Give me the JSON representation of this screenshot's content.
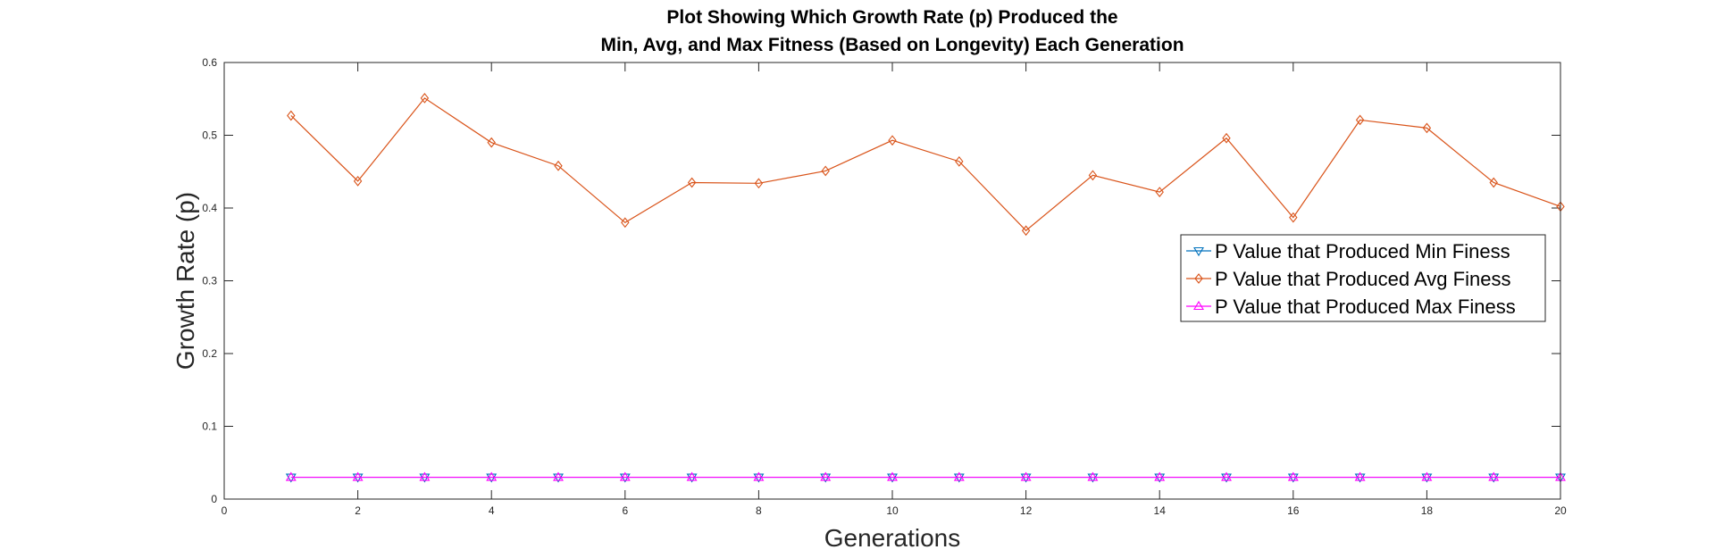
{
  "chart_data": {
    "type": "line",
    "title": [
      "Plot Showing Which Growth Rate (p) Produced the",
      "Min, Avg, and Max Fitness (Based on Longevity) Each Generation"
    ],
    "xlabel": "Generations",
    "ylabel": "Growth Rate (p)",
    "xlim": [
      0,
      20
    ],
    "ylim": [
      0,
      0.6
    ],
    "xticks": [
      0,
      2,
      4,
      6,
      8,
      10,
      12,
      14,
      16,
      18,
      20
    ],
    "yticks": [
      0,
      0.1,
      0.2,
      0.3,
      0.4,
      0.5,
      0.6
    ],
    "grid": false,
    "legend_position": "right-center",
    "x": [
      1,
      2,
      3,
      4,
      5,
      6,
      7,
      8,
      9,
      10,
      11,
      12,
      13,
      14,
      15,
      16,
      17,
      18,
      19,
      20
    ],
    "series": [
      {
        "name": "P Value that Produced Min Finess",
        "color": "#0072BD",
        "marker": "triangle-down",
        "values": [
          0.03,
          0.03,
          0.03,
          0.03,
          0.03,
          0.03,
          0.03,
          0.03,
          0.03,
          0.03,
          0.03,
          0.03,
          0.03,
          0.03,
          0.03,
          0.03,
          0.03,
          0.03,
          0.03,
          0.03
        ]
      },
      {
        "name": "P Value that Produced Avg Finess",
        "color": "#D95319",
        "marker": "diamond",
        "values": [
          0.527,
          0.437,
          0.551,
          0.49,
          0.458,
          0.38,
          0.435,
          0.434,
          0.451,
          0.493,
          0.464,
          0.369,
          0.445,
          0.422,
          0.496,
          0.387,
          0.521,
          0.51,
          0.435,
          0.402
        ]
      },
      {
        "name": "P Value that Produced Max Finess",
        "color": "#FF00FF",
        "marker": "triangle-up",
        "values": [
          0.03,
          0.03,
          0.03,
          0.03,
          0.03,
          0.03,
          0.03,
          0.03,
          0.03,
          0.03,
          0.03,
          0.03,
          0.03,
          0.03,
          0.03,
          0.03,
          0.03,
          0.03,
          0.03,
          0.03
        ]
      }
    ]
  }
}
